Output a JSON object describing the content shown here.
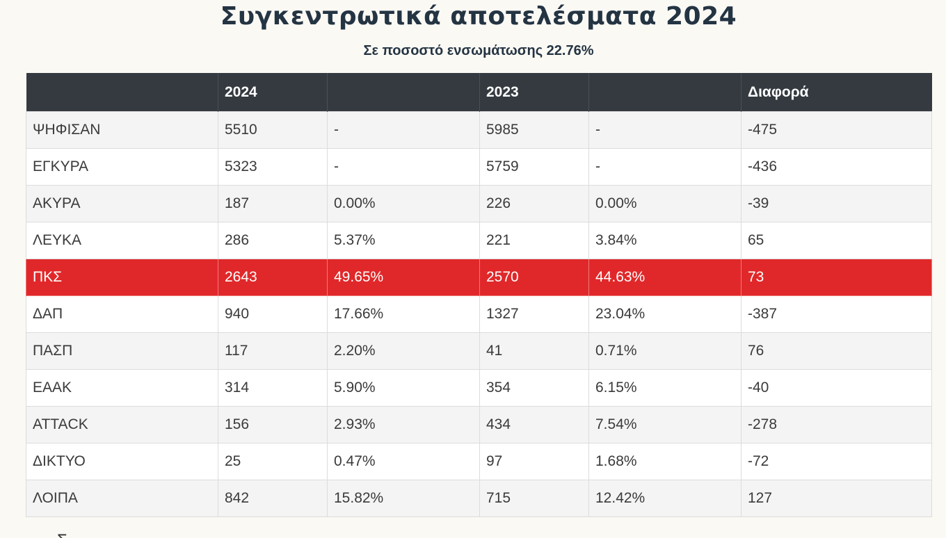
{
  "title": "Συγκεντρωτικά αποτελέσματα 2024",
  "subtitle": "Σε ποσοστό ενσωμάτωσης 22.76%",
  "table": {
    "headers": [
      "",
      "2024",
      "",
      "2023",
      "",
      "Διαφορά"
    ],
    "rows": [
      {
        "label": "ΨΗΦΙΣΑΝ",
        "v2024": "5510",
        "p2024": "-",
        "v2023": "5985",
        "p2023": "-",
        "diff": "-475"
      },
      {
        "label": "ΕΓΚΥΡΑ",
        "v2024": "5323",
        "p2024": "-",
        "v2023": "5759",
        "p2023": "-",
        "diff": "-436"
      },
      {
        "label": "ΑΚΥΡΑ",
        "v2024": "187",
        "p2024": "0.00%",
        "v2023": "226",
        "p2023": "0.00%",
        "diff": "-39"
      },
      {
        "label": "ΛΕΥΚΑ",
        "v2024": "286",
        "p2024": "5.37%",
        "v2023": "221",
        "p2023": "3.84%",
        "diff": "65"
      },
      {
        "label": "ΠΚΣ",
        "v2024": "2643",
        "p2024": "49.65%",
        "v2023": "2570",
        "p2023": "44.63%",
        "diff": "73"
      },
      {
        "label": "ΔΑΠ",
        "v2024": "940",
        "p2024": "17.66%",
        "v2023": "1327",
        "p2023": "23.04%",
        "diff": "-387"
      },
      {
        "label": "ΠΑΣΠ",
        "v2024": "117",
        "p2024": "2.20%",
        "v2023": "41",
        "p2023": "0.71%",
        "diff": "76"
      },
      {
        "label": "ΕΑΑΚ",
        "v2024": "314",
        "p2024": "5.90%",
        "v2023": "354",
        "p2023": "6.15%",
        "diff": "-40"
      },
      {
        "label": "ATTACK",
        "v2024": "156",
        "p2024": "2.93%",
        "v2023": "434",
        "p2023": "7.54%",
        "diff": "-278"
      },
      {
        "label": "ΔΙΚΤΥΟ",
        "v2024": "25",
        "p2024": "0.47%",
        "v2023": "97",
        "p2023": "1.68%",
        "diff": "-72"
      },
      {
        "label": "ΛΟΙΠΑ",
        "v2024": "842",
        "p2024": "15.82%",
        "v2023": "715",
        "p2023": "12.42%",
        "diff": "127"
      }
    ]
  },
  "highlight_color": "#e0282a",
  "header_color": "#343a40",
  "footer_fragment": "Σ"
}
